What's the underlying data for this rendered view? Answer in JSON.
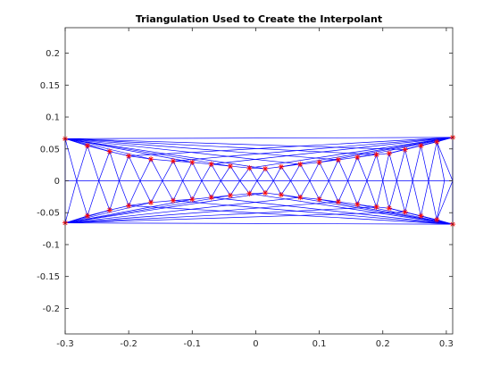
{
  "chart_data": {
    "type": "scatter",
    "title": "Triangulation Used to Create the Interpolant",
    "xlabel": "",
    "ylabel": "",
    "xlim": [
      -0.3,
      0.31
    ],
    "ylim": [
      -0.24,
      0.24
    ],
    "xticks": [
      -0.3,
      -0.2,
      -0.1,
      0,
      0.1,
      0.2,
      0.3
    ],
    "yticks": [
      -0.2,
      -0.15,
      -0.1,
      -0.05,
      0,
      0.05,
      0.1,
      0.15,
      0.2
    ],
    "xtick_labels": [
      "-0.3",
      "-0.2",
      "-0.1",
      "0",
      "0.1",
      "0.2",
      "0.3"
    ],
    "ytick_labels": [
      "-0.2",
      "-0.15",
      "-0.1",
      "-0.05",
      "0",
      "0.05",
      "0.1",
      "0.15",
      "0.2"
    ],
    "grid": false,
    "colors": {
      "edges": "#0000ff",
      "markers": "#ff0000",
      "axes": "#262626"
    },
    "boundary_x": [
      -0.3,
      -0.265,
      -0.23,
      -0.2,
      -0.165,
      -0.13,
      -0.1,
      -0.07,
      -0.04,
      -0.01,
      0.015,
      0.04,
      0.07,
      0.1,
      0.13,
      0.16,
      0.19,
      0.21,
      0.235,
      0.26,
      0.285,
      0.31
    ],
    "boundary_y_upper": [
      0.066,
      0.055,
      0.046,
      0.039,
      0.034,
      0.031,
      0.029,
      0.026,
      0.023,
      0.02,
      0.019,
      0.022,
      0.026,
      0.029,
      0.033,
      0.037,
      0.041,
      0.043,
      0.049,
      0.055,
      0.061,
      0.068
    ],
    "boundary_y_lower": [
      -0.066,
      -0.055,
      -0.046,
      -0.039,
      -0.034,
      -0.031,
      -0.029,
      -0.026,
      -0.023,
      -0.02,
      -0.019,
      -0.022,
      -0.026,
      -0.029,
      -0.033,
      -0.037,
      -0.041,
      -0.043,
      -0.049,
      -0.055,
      -0.061,
      -0.068
    ],
    "mid_nodes_x": [
      -0.3,
      -0.282,
      -0.247,
      -0.215,
      -0.182,
      -0.147,
      -0.115,
      -0.085,
      -0.055,
      -0.025,
      0.002,
      0.028,
      0.055,
      0.085,
      0.115,
      0.145,
      0.175,
      0.2,
      0.222,
      0.247,
      0.272,
      0.297,
      0.31
    ],
    "mid_nodes_y": 0
  }
}
